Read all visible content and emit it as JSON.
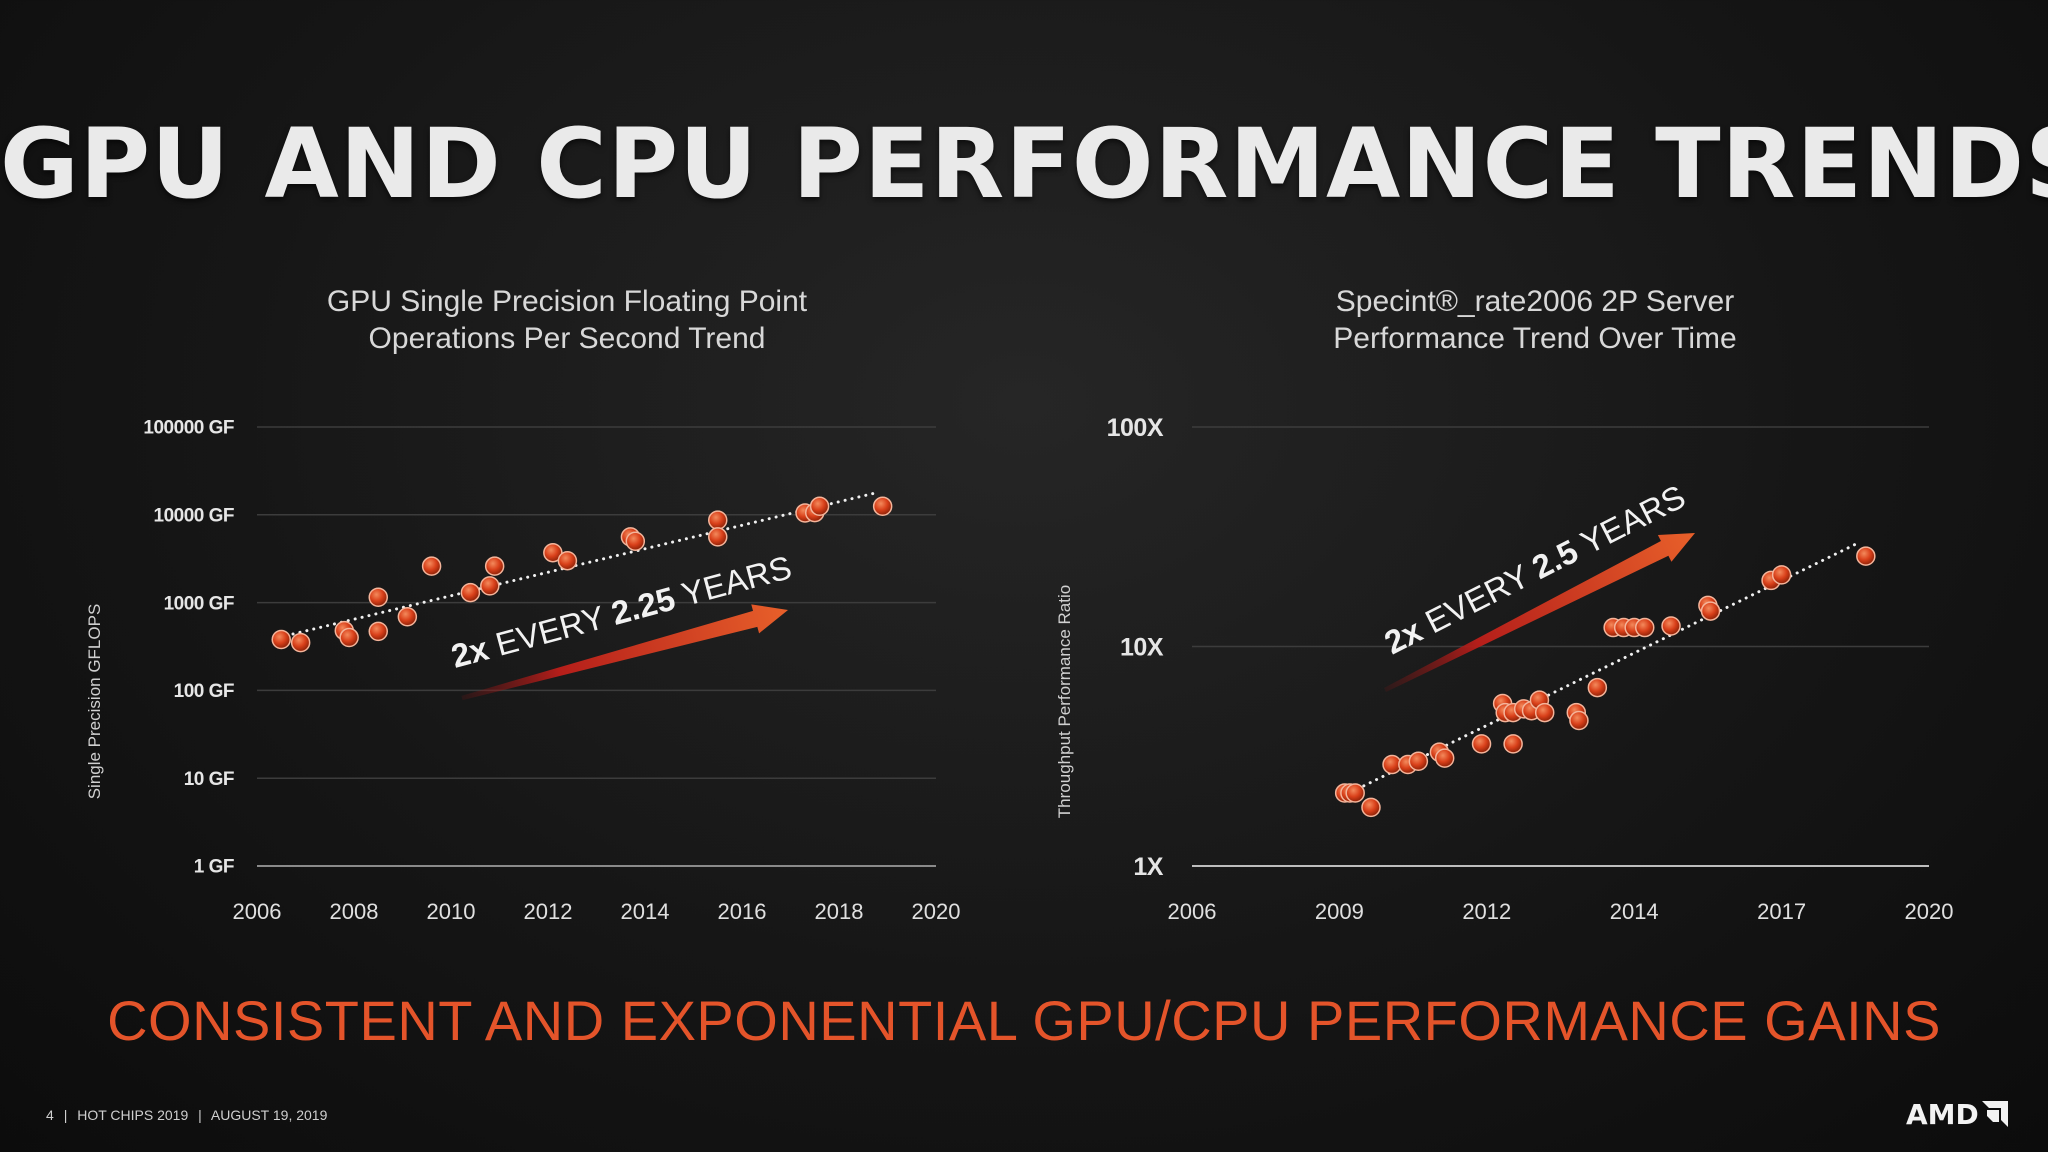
{
  "slide": {
    "title": "GPU AND CPU PERFORMANCE TRENDS",
    "tagline": "CONSISTENT AND EXPONENTIAL GPU/CPU PERFORMANCE GAINS",
    "footer": {
      "page": "4",
      "sep": "|",
      "event": "HOT CHIPS 2019",
      "date": "AUGUST 19, 2019"
    },
    "logo": "AMD",
    "colors": {
      "accent": "#e4542a",
      "point": "#d9401a",
      "arrow_end": "#e8602a",
      "arrow_start": "#8a1414"
    }
  },
  "chart_data": [
    {
      "type": "scatter",
      "title_lines": [
        "GPU Single Precision Floating Point",
        "Operations Per Second Trend"
      ],
      "ylabel": "Single Precision GFLOPS",
      "xlabel": "",
      "yscale": "log",
      "xlim": [
        2006,
        2020
      ],
      "ylim": [
        1,
        100000
      ],
      "x_ticks": [
        "2006",
        "2008",
        "2010",
        "2012",
        "2014",
        "2016",
        "2018",
        "2020"
      ],
      "y_ticks": [
        {
          "value": 1,
          "label": "1 GF"
        },
        {
          "value": 10,
          "label": "10 GF"
        },
        {
          "value": 100,
          "label": "100 GF"
        },
        {
          "value": 1000,
          "label": "1000 GF"
        },
        {
          "value": 10000,
          "label": "10000 GF"
        },
        {
          "value": 100000,
          "label": "100000 GF"
        }
      ],
      "points": [
        [
          2006.5,
          380
        ],
        [
          2006.9,
          350
        ],
        [
          2007.8,
          480
        ],
        [
          2007.9,
          400
        ],
        [
          2008.5,
          1150
        ],
        [
          2008.5,
          470
        ],
        [
          2009.1,
          690
        ],
        [
          2009.6,
          2600
        ],
        [
          2010.4,
          1300
        ],
        [
          2010.8,
          1550
        ],
        [
          2010.9,
          2600
        ],
        [
          2012.1,
          3700
        ],
        [
          2012.4,
          3000
        ],
        [
          2013.7,
          5600
        ],
        [
          2013.8,
          5000
        ],
        [
          2015.5,
          8700
        ],
        [
          2015.5,
          5600
        ],
        [
          2017.3,
          10500
        ],
        [
          2017.5,
          10600
        ],
        [
          2017.6,
          12500
        ],
        [
          2018.9,
          12500
        ]
      ],
      "trend": {
        "from": [
          2006.6,
          420
        ],
        "to": [
          2018.8,
          18000
        ]
      },
      "annotation": {
        "prefix": "2x",
        "mid": " EVERY ",
        "bold": "2.25",
        "suffix": " YEARS"
      }
    },
    {
      "type": "scatter",
      "title_lines": [
        "Specint®_rate2006 2P Server",
        "Performance Trend Over Time"
      ],
      "ylabel": "Throughput Performance Ratio",
      "xlabel": "",
      "yscale": "log",
      "xlim": [
        2006,
        2020
      ],
      "ylim": [
        1,
        100
      ],
      "x_ticks": [
        "2006",
        "2009",
        "2012",
        "2014",
        "2017",
        "2020"
      ],
      "y_ticks": [
        {
          "value": 1,
          "label": "1X"
        },
        {
          "value": 10,
          "label": "10X"
        },
        {
          "value": 100,
          "label": "100X"
        }
      ],
      "points": [
        [
          2008.9,
          2.15
        ],
        [
          2009.0,
          2.15
        ],
        [
          2009.1,
          2.15
        ],
        [
          2009.4,
          1.85
        ],
        [
          2009.8,
          2.9
        ],
        [
          2010.1,
          2.9
        ],
        [
          2010.3,
          3.0
        ],
        [
          2010.7,
          3.3
        ],
        [
          2010.8,
          3.1
        ],
        [
          2011.5,
          3.6
        ],
        [
          2011.9,
          5.5
        ],
        [
          2011.95,
          5.0
        ],
        [
          2012.1,
          5.0
        ],
        [
          2012.1,
          3.6
        ],
        [
          2012.3,
          5.2
        ],
        [
          2012.45,
          5.1
        ],
        [
          2012.6,
          5.7
        ],
        [
          2012.7,
          5.0
        ],
        [
          2013.3,
          5.0
        ],
        [
          2013.35,
          4.6
        ],
        [
          2013.7,
          6.5
        ],
        [
          2014.0,
          12.2
        ],
        [
          2014.2,
          12.2
        ],
        [
          2014.4,
          12.2
        ],
        [
          2014.6,
          12.2
        ],
        [
          2015.1,
          12.4
        ],
        [
          2015.8,
          15.4
        ],
        [
          2015.85,
          14.5
        ],
        [
          2017.0,
          20.0
        ],
        [
          2017.2,
          21.2
        ],
        [
          2018.8,
          25.8
        ]
      ],
      "trend": {
        "from": [
          2008.9,
          2.1
        ],
        "to": [
          2018.7,
          30
        ]
      },
      "annotation": {
        "prefix": "2x",
        "mid": " EVERY ",
        "bold": "2.5",
        "suffix": " YEARS"
      }
    }
  ]
}
